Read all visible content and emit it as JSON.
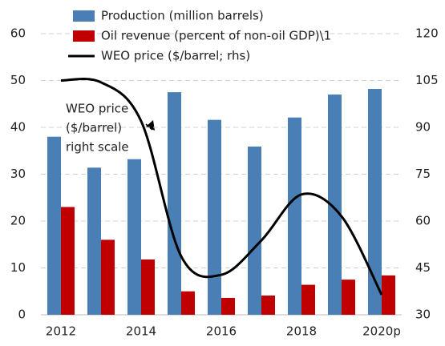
{
  "chart_data": {
    "type": "bar",
    "categories": [
      "2012",
      null,
      "2014",
      null,
      "2016",
      null,
      "2018",
      null,
      "2020p"
    ],
    "series": [
      {
        "name": "Production (million barrels)",
        "color": "#4a7fb5",
        "type": "bar",
        "values": [
          38,
          31.4,
          33.2,
          47.5,
          41.6,
          35.9,
          42.1,
          47,
          48.2
        ]
      },
      {
        "name": "Oil revenue (percent of non-oil GDP)\\1",
        "color": "#c00000",
        "type": "bar",
        "values": [
          23,
          16,
          11.8,
          5,
          3.6,
          4.1,
          6.4,
          7.5,
          8.4
        ]
      },
      {
        "name": "WEO price ($/barrel; rhs)",
        "color": "#000000",
        "type": "line",
        "axis": "y2",
        "values": [
          105,
          104.4,
          92,
          48.7,
          42.8,
          53.8,
          68.5,
          61.5,
          36.4
        ]
      }
    ],
    "ylim": [
      0,
      60
    ],
    "yticks": [
      0,
      10,
      20,
      30,
      40,
      50,
      60
    ],
    "y2lim": [
      30,
      120
    ],
    "y2ticks": [
      30,
      45,
      60,
      75,
      90,
      105,
      120
    ],
    "grid": true,
    "annotation": [
      "WEO price",
      "($/barrel)",
      "right scale"
    ]
  }
}
